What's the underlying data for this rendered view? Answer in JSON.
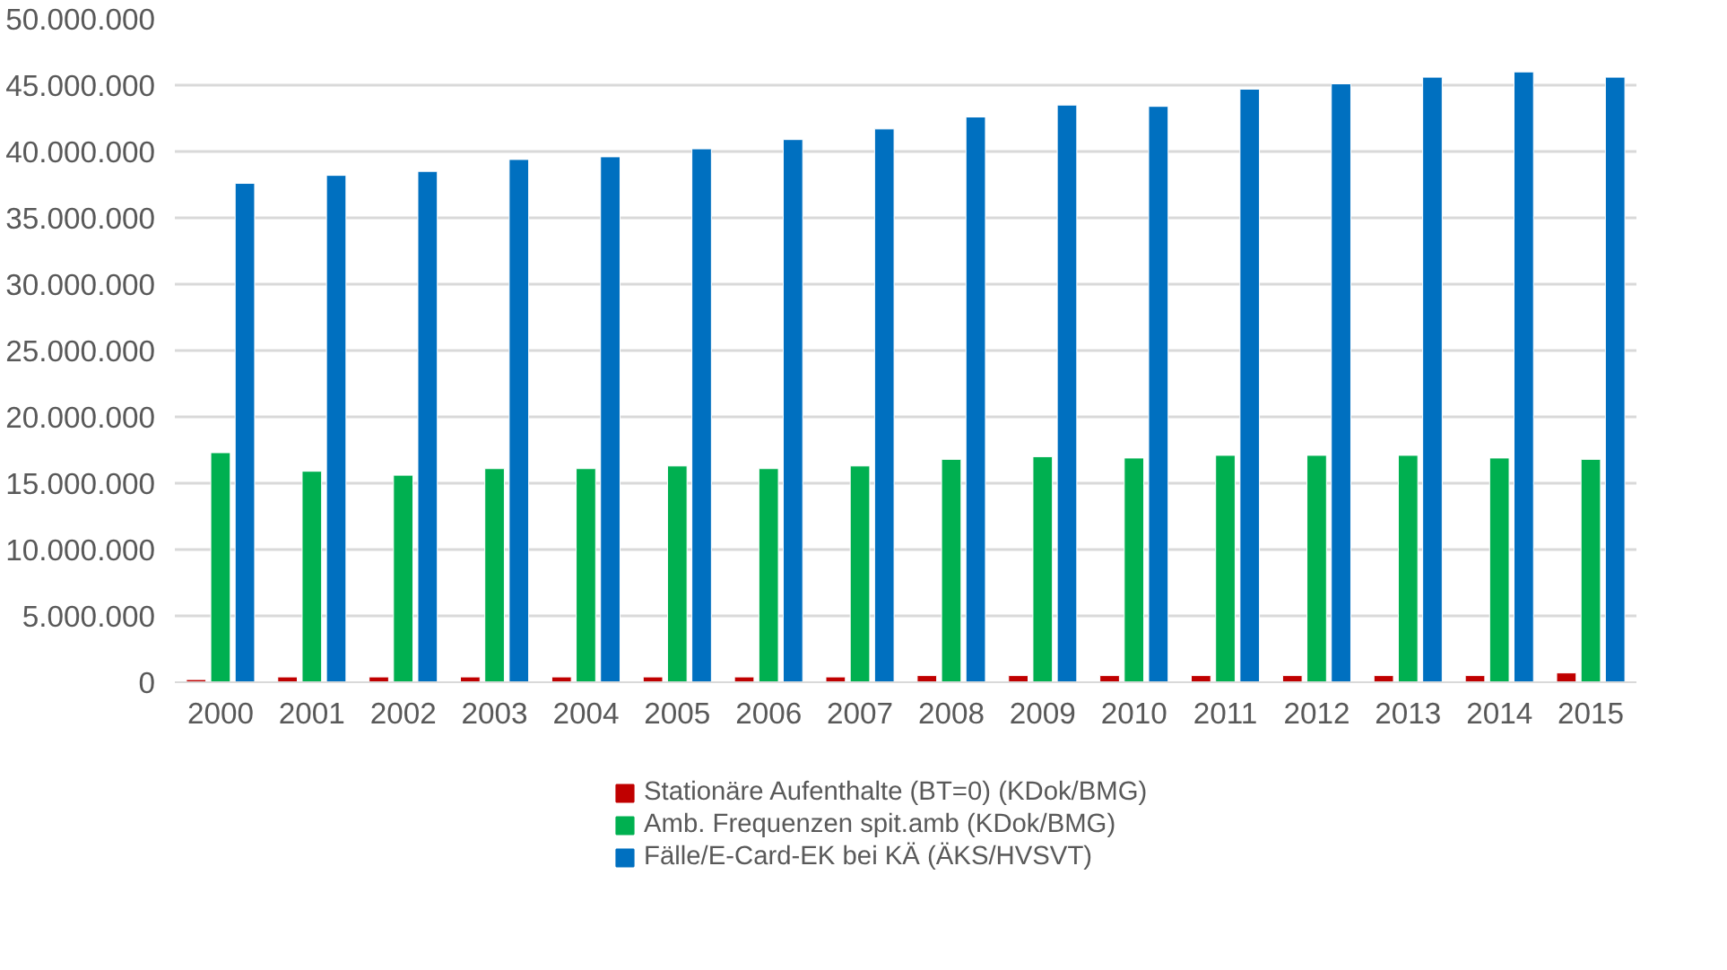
{
  "chart_data": {
    "type": "bar",
    "categories": [
      "2000",
      "2001",
      "2002",
      "2003",
      "2004",
      "2005",
      "2006",
      "2007",
      "2008",
      "2009",
      "2010",
      "2011",
      "2012",
      "2013",
      "2014",
      "2015"
    ],
    "series": [
      {
        "name": "Stationäre Aufenthalte (BT=0) (KDok/BMG)",
        "color": "#c00000",
        "values": [
          200000,
          400000,
          400000,
          400000,
          400000,
          400000,
          400000,
          400000,
          500000,
          500000,
          500000,
          500000,
          500000,
          500000,
          500000,
          700000
        ]
      },
      {
        "name": "Amb. Frequenzen spit.amb (KDok/BMG)",
        "color": "#00b050",
        "values": [
          17300000,
          15900000,
          15600000,
          16100000,
          16100000,
          16300000,
          16100000,
          16300000,
          16800000,
          17000000,
          16900000,
          17100000,
          17100000,
          17100000,
          16900000,
          16800000
        ]
      },
      {
        "name": "Fälle/E-Card-EK bei KÄ (ÄKS/HVSVT)",
        "color": "#0070c0",
        "values": [
          37600000,
          38200000,
          38500000,
          39400000,
          39600000,
          40200000,
          40900000,
          41700000,
          42600000,
          43500000,
          43400000,
          44700000,
          45100000,
          45600000,
          46000000,
          45600000
        ]
      }
    ],
    "ylim": [
      0,
      50000000
    ],
    "yticks": [
      {
        "value": 0,
        "label": "0"
      },
      {
        "value": 5000000,
        "label": "5.000.000"
      },
      {
        "value": 10000000,
        "label": "10.000.000"
      },
      {
        "value": 15000000,
        "label": "15.000.000"
      },
      {
        "value": 20000000,
        "label": "20.000.000"
      },
      {
        "value": 25000000,
        "label": "25.000.000"
      },
      {
        "value": 30000000,
        "label": "30.000.000"
      },
      {
        "value": 35000000,
        "label": "35.000.000"
      },
      {
        "value": 40000000,
        "label": "40.000.000"
      },
      {
        "value": 45000000,
        "label": "45.000.000"
      },
      {
        "value": 50000000,
        "label": "50.000.000"
      }
    ],
    "grid": "y",
    "legend": "bottom"
  }
}
